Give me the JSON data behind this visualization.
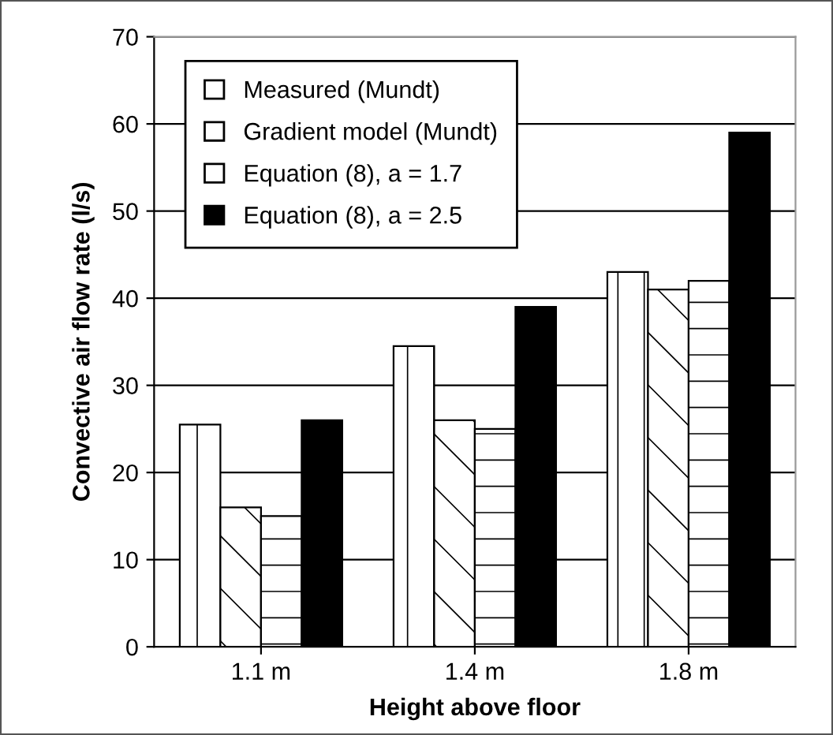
{
  "chart_data": {
    "type": "bar",
    "xlabel": "Height above floor",
    "ylabel": "Convective air flow rate (l/s)",
    "categories": [
      "1.1 m",
      "1.4 m",
      "1.8 m"
    ],
    "series": [
      {
        "name": "Measured (Mundt)",
        "color": "#ffffff",
        "values": [
          25.5,
          34.5,
          43
        ]
      },
      {
        "name": "Gradient model (Mundt)",
        "color": "#ffffff",
        "values": [
          16,
          26,
          41
        ]
      },
      {
        "name": "Equation (8), a = 1.7",
        "color": "#ffffff",
        "values": [
          15,
          25,
          42
        ]
      },
      {
        "name": "Equation (8), a = 2.5",
        "color": "#000000",
        "values": [
          26,
          39,
          59
        ]
      }
    ],
    "ylim": [
      0,
      70
    ],
    "yticks": [
      0,
      10,
      20,
      30,
      40,
      50,
      60,
      70
    ],
    "grid": "y",
    "legend": "top left"
  }
}
